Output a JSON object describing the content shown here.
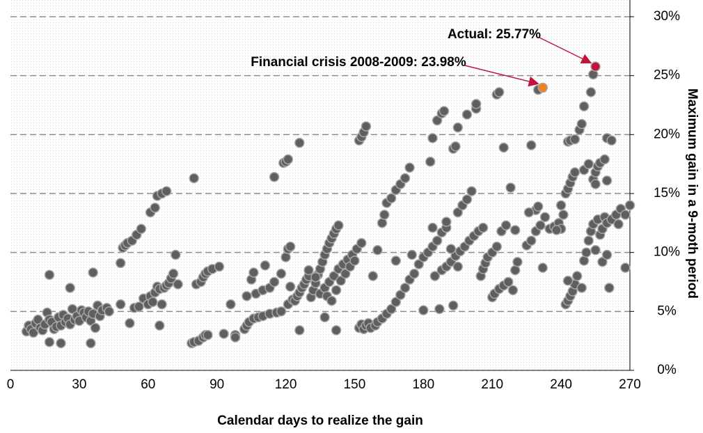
{
  "chart_data": {
    "type": "scatter",
    "x_label": "Calendar days to realize the gain",
    "y_label": "Maximum gain in a 9-moth period",
    "xlim": [
      0,
      270
    ],
    "xticks": [
      0,
      30,
      60,
      90,
      120,
      150,
      180,
      210,
      240,
      270
    ],
    "ylim": [
      0,
      30
    ],
    "yticks": [
      {
        "value": 0,
        "label": "0%"
      },
      {
        "value": 5,
        "label": "5%"
      },
      {
        "value": 10,
        "label": "10%"
      },
      {
        "value": 15,
        "label": "15%"
      },
      {
        "value": 20,
        "label": "20%"
      },
      {
        "value": 25,
        "label": "25%"
      },
      {
        "value": 30,
        "label": "30%"
      }
    ],
    "grid": true,
    "color": "#5f5f5f",
    "points": [
      [
        7,
        3.3
      ],
      [
        8,
        3.8
      ],
      [
        9,
        3.5
      ],
      [
        10,
        3.2
      ],
      [
        11,
        4.0
      ],
      [
        12,
        4.3
      ],
      [
        13,
        3.6
      ],
      [
        14,
        3.4
      ],
      [
        15,
        3.9
      ],
      [
        16,
        4.9
      ],
      [
        17,
        4.3
      ],
      [
        18,
        4.1
      ],
      [
        19,
        3.5
      ],
      [
        20,
        3.7
      ],
      [
        21,
        4.5
      ],
      [
        22,
        3.8
      ],
      [
        23,
        4.7
      ],
      [
        24,
        4.1
      ],
      [
        25,
        4.4
      ],
      [
        26,
        3.9
      ],
      [
        27,
        5.2
      ],
      [
        28,
        4.3
      ],
      [
        29,
        4.6
      ],
      [
        30,
        4.2
      ],
      [
        31,
        5.1
      ],
      [
        32,
        4.9
      ],
      [
        33,
        4.5
      ],
      [
        34,
        5.0
      ],
      [
        35,
        4.2
      ],
      [
        36,
        4.8
      ],
      [
        37,
        3.6
      ],
      [
        38,
        5.5
      ],
      [
        39,
        4.6
      ],
      [
        40,
        5.1
      ],
      [
        42,
        5.3
      ],
      [
        43,
        5.0
      ],
      [
        17,
        8.1
      ],
      [
        17,
        2.4
      ],
      [
        22,
        2.3
      ],
      [
        26,
        7.0
      ],
      [
        35,
        2.3
      ],
      [
        36,
        8.3
      ],
      [
        48,
        5.6
      ],
      [
        48,
        9.1
      ],
      [
        52,
        4.0
      ],
      [
        54,
        5.3
      ],
      [
        56,
        5.4
      ],
      [
        49,
        10.4
      ],
      [
        50,
        10.6
      ],
      [
        51,
        10.8
      ],
      [
        53,
        11.0
      ],
      [
        55,
        11.5
      ],
      [
        57,
        12.0
      ],
      [
        61,
        13.4
      ],
      [
        63,
        13.8
      ],
      [
        64,
        14.8
      ],
      [
        66,
        15.0
      ],
      [
        68,
        15.2
      ],
      [
        58,
        6.1
      ],
      [
        60,
        5.6
      ],
      [
        61,
        6.3
      ],
      [
        62,
        5.8
      ],
      [
        63,
        6.6
      ],
      [
        64,
        7.1
      ],
      [
        65,
        6.9
      ],
      [
        66,
        5.6
      ],
      [
        67,
        7.0
      ],
      [
        68,
        7.2
      ],
      [
        69,
        7.4
      ],
      [
        70,
        7.8
      ],
      [
        71,
        8.2
      ],
      [
        72,
        9.8
      ],
      [
        73,
        7.3
      ],
      [
        65,
        3.8
      ],
      [
        79,
        2.3
      ],
      [
        80,
        2.4
      ],
      [
        82,
        2.5
      ],
      [
        84,
        2.8
      ],
      [
        85,
        3.0
      ],
      [
        86,
        3.0
      ],
      [
        80,
        16.3
      ],
      [
        81,
        7.3
      ],
      [
        83,
        7.5
      ],
      [
        84,
        7.9
      ],
      [
        85,
        8.2
      ],
      [
        86,
        8.4
      ],
      [
        88,
        8.6
      ],
      [
        91,
        8.8
      ],
      [
        93,
        3.1
      ],
      [
        96,
        5.6
      ],
      [
        98,
        3.0
      ],
      [
        98,
        2.8
      ],
      [
        102,
        3.5
      ],
      [
        103,
        3.8
      ],
      [
        104,
        4.1
      ],
      [
        106,
        4.4
      ],
      [
        108,
        4.5
      ],
      [
        110,
        4.6
      ],
      [
        113,
        4.8
      ],
      [
        116,
        4.9
      ],
      [
        118,
        5.0
      ],
      [
        121,
        5.6
      ],
      [
        123,
        6.0
      ],
      [
        103,
        6.3
      ],
      [
        105,
        7.7
      ],
      [
        107,
        6.5
      ],
      [
        110,
        6.8
      ],
      [
        113,
        7.0
      ],
      [
        115,
        7.5
      ],
      [
        118,
        8.2
      ],
      [
        120,
        9.6
      ],
      [
        121,
        10.3
      ],
      [
        122,
        10.5
      ],
      [
        115,
        16.4
      ],
      [
        119,
        17.6
      ],
      [
        120,
        17.7
      ],
      [
        121,
        17.9
      ],
      [
        126,
        19.3
      ],
      [
        106,
        8.3
      ],
      [
        111,
        8.9
      ],
      [
        122,
        7.1
      ],
      [
        124,
        5.9
      ],
      [
        125,
        6.3
      ],
      [
        126,
        6.6
      ],
      [
        127,
        7.0
      ],
      [
        128,
        7.3
      ],
      [
        129,
        7.7
      ],
      [
        130,
        8.0
      ],
      [
        131,
        6.2
      ],
      [
        132,
        6.8
      ],
      [
        133,
        7.4
      ],
      [
        134,
        8.1
      ],
      [
        135,
        8.6
      ],
      [
        136,
        9.2
      ],
      [
        137,
        9.8
      ],
      [
        138,
        10.3
      ],
      [
        139,
        10.8
      ],
      [
        140,
        11.2
      ],
      [
        141,
        11.6
      ],
      [
        142,
        12.0
      ],
      [
        143,
        12.3
      ],
      [
        130,
        8.5
      ],
      [
        133,
        7.9
      ],
      [
        135,
        6.5
      ],
      [
        137,
        7.0
      ],
      [
        139,
        7.5
      ],
      [
        141,
        8.0
      ],
      [
        143,
        8.6
      ],
      [
        145,
        9.0
      ],
      [
        147,
        9.4
      ],
      [
        149,
        9.8
      ],
      [
        151,
        10.3
      ],
      [
        153,
        10.8
      ],
      [
        138,
        6.3
      ],
      [
        140,
        5.9
      ],
      [
        142,
        6.8
      ],
      [
        144,
        7.6
      ],
      [
        146,
        8.2
      ],
      [
        148,
        8.8
      ],
      [
        150,
        9.3
      ],
      [
        126,
        3.4
      ],
      [
        137,
        4.5
      ],
      [
        142,
        3.4
      ],
      [
        152,
        3.6
      ],
      [
        153,
        3.9
      ],
      [
        154,
        3.5
      ],
      [
        155,
        3.8
      ],
      [
        156,
        4.0
      ],
      [
        152,
        19.5
      ],
      [
        153,
        19.8
      ],
      [
        154,
        20.2
      ],
      [
        155,
        20.7
      ],
      [
        157,
        3.6
      ],
      [
        159,
        3.8
      ],
      [
        160,
        4.1
      ],
      [
        162,
        4.4
      ],
      [
        164,
        4.8
      ],
      [
        166,
        5.2
      ],
      [
        168,
        5.8
      ],
      [
        170,
        6.4
      ],
      [
        172,
        7.0
      ],
      [
        174,
        7.7
      ],
      [
        176,
        8.2
      ],
      [
        178,
        9.0
      ],
      [
        180,
        9.6
      ],
      [
        182,
        10.0
      ],
      [
        184,
        10.5
      ],
      [
        186,
        11.0
      ],
      [
        188,
        11.7
      ],
      [
        190,
        12.1
      ],
      [
        158,
        8.0
      ],
      [
        160,
        10.2
      ],
      [
        162,
        12.5
      ],
      [
        163,
        13.2
      ],
      [
        164,
        14.2
      ],
      [
        166,
        14.6
      ],
      [
        168,
        15.3
      ],
      [
        170,
        15.8
      ],
      [
        172,
        16.3
      ],
      [
        174,
        17.2
      ],
      [
        175,
        9.8
      ],
      [
        168,
        9.3
      ],
      [
        183,
        17.7
      ],
      [
        184,
        19.7
      ],
      [
        186,
        21.2
      ],
      [
        188,
        21.8
      ],
      [
        189,
        22.0
      ],
      [
        193,
        18.8
      ],
      [
        194,
        19.0
      ],
      [
        195,
        20.6
      ],
      [
        199,
        21.7
      ],
      [
        203,
        22.2
      ],
      [
        203,
        22.6
      ],
      [
        212,
        23.4
      ],
      [
        213,
        23.6
      ],
      [
        215,
        18.9
      ],
      [
        180,
        5.1
      ],
      [
        187,
        5.2
      ],
      [
        193,
        5.5
      ],
      [
        185,
        8.0
      ],
      [
        188,
        8.5
      ],
      [
        190,
        8.8
      ],
      [
        192,
        9.2
      ],
      [
        194,
        9.7
      ],
      [
        196,
        10.1
      ],
      [
        198,
        10.5
      ],
      [
        200,
        11.0
      ],
      [
        202,
        11.4
      ],
      [
        204,
        11.8
      ],
      [
        206,
        12.1
      ],
      [
        195,
        13.4
      ],
      [
        197,
        14.0
      ],
      [
        199,
        14.5
      ],
      [
        201,
        15.2
      ],
      [
        192,
        10.3
      ],
      [
        190,
        12.6
      ],
      [
        184,
        12.1
      ],
      [
        195,
        8.8
      ],
      [
        205,
        8.0
      ],
      [
        206,
        8.6
      ],
      [
        207,
        9.1
      ],
      [
        208,
        9.6
      ],
      [
        210,
        10.0
      ],
      [
        212,
        10.5
      ],
      [
        214,
        11.8
      ],
      [
        216,
        12.3
      ],
      [
        210,
        6.2
      ],
      [
        211,
        6.5
      ],
      [
        213,
        6.9
      ],
      [
        215,
        7.2
      ],
      [
        217,
        7.5
      ],
      [
        219,
        6.8
      ],
      [
        220,
        8.5
      ],
      [
        221,
        9.2
      ],
      [
        218,
        15.5
      ],
      [
        220,
        11.9
      ],
      [
        225,
        10.6
      ],
      [
        227,
        11.0
      ],
      [
        229,
        11.8
      ],
      [
        231,
        12.3
      ],
      [
        233,
        13.0
      ],
      [
        229,
        13.6
      ],
      [
        230,
        13.9
      ],
      [
        232,
        8.7
      ],
      [
        235,
        12.0
      ],
      [
        237,
        12.2
      ],
      [
        239,
        12.5
      ],
      [
        240,
        14.0
      ],
      [
        241,
        13.2
      ],
      [
        242,
        15.0
      ],
      [
        243,
        15.4
      ],
      [
        244,
        15.9
      ],
      [
        245,
        16.4
      ],
      [
        246,
        16.8
      ],
      [
        242,
        5.6
      ],
      [
        243,
        5.9
      ],
      [
        244,
        6.3
      ],
      [
        245,
        6.7
      ],
      [
        246,
        7.3
      ],
      [
        247,
        8.0
      ],
      [
        243,
        7.6
      ],
      [
        249,
        7.0
      ],
      [
        250,
        9.3
      ],
      [
        251,
        10.0
      ],
      [
        252,
        11.0
      ],
      [
        253,
        11.8
      ],
      [
        254,
        12.4
      ],
      [
        255,
        10.2
      ],
      [
        256,
        12.8
      ],
      [
        257,
        11.5
      ],
      [
        258,
        12.0
      ],
      [
        259,
        13.0
      ],
      [
        260,
        12.5
      ],
      [
        262,
        12.8
      ],
      [
        264,
        13.2
      ],
      [
        265,
        12.4
      ],
      [
        266,
        13.7
      ],
      [
        268,
        13.2
      ],
      [
        270,
        14.0
      ],
      [
        268,
        8.7
      ],
      [
        261,
        7.0
      ],
      [
        258,
        9.2
      ],
      [
        260,
        9.8
      ],
      [
        243,
        19.4
      ],
      [
        244,
        19.5
      ],
      [
        246,
        19.6
      ],
      [
        248,
        20.4
      ],
      [
        249,
        20.9
      ],
      [
        250,
        22.4
      ],
      [
        253,
        23.6
      ],
      [
        254,
        25.1
      ],
      [
        250,
        17.0
      ],
      [
        252,
        17.5
      ],
      [
        254,
        16.2
      ],
      [
        255,
        16.8
      ],
      [
        256,
        17.3
      ],
      [
        257,
        17.6
      ],
      [
        259,
        17.9
      ],
      [
        260,
        19.7
      ],
      [
        262,
        19.5
      ],
      [
        260,
        16.1
      ],
      [
        255,
        15.8
      ],
      [
        240,
        12.0
      ],
      [
        238,
        11.9
      ],
      [
        227,
        19.1
      ],
      [
        226,
        13.4
      ],
      [
        230,
        23.8
      ]
    ],
    "highlights": [
      {
        "label": "Financial crisis 2008-2009: 23.98%",
        "x": 232,
        "y": 23.98,
        "color": "#f0821e"
      },
      {
        "label": "Actual: 25.77%",
        "x": 255,
        "y": 25.77,
        "color": "#c0143c"
      }
    ]
  }
}
